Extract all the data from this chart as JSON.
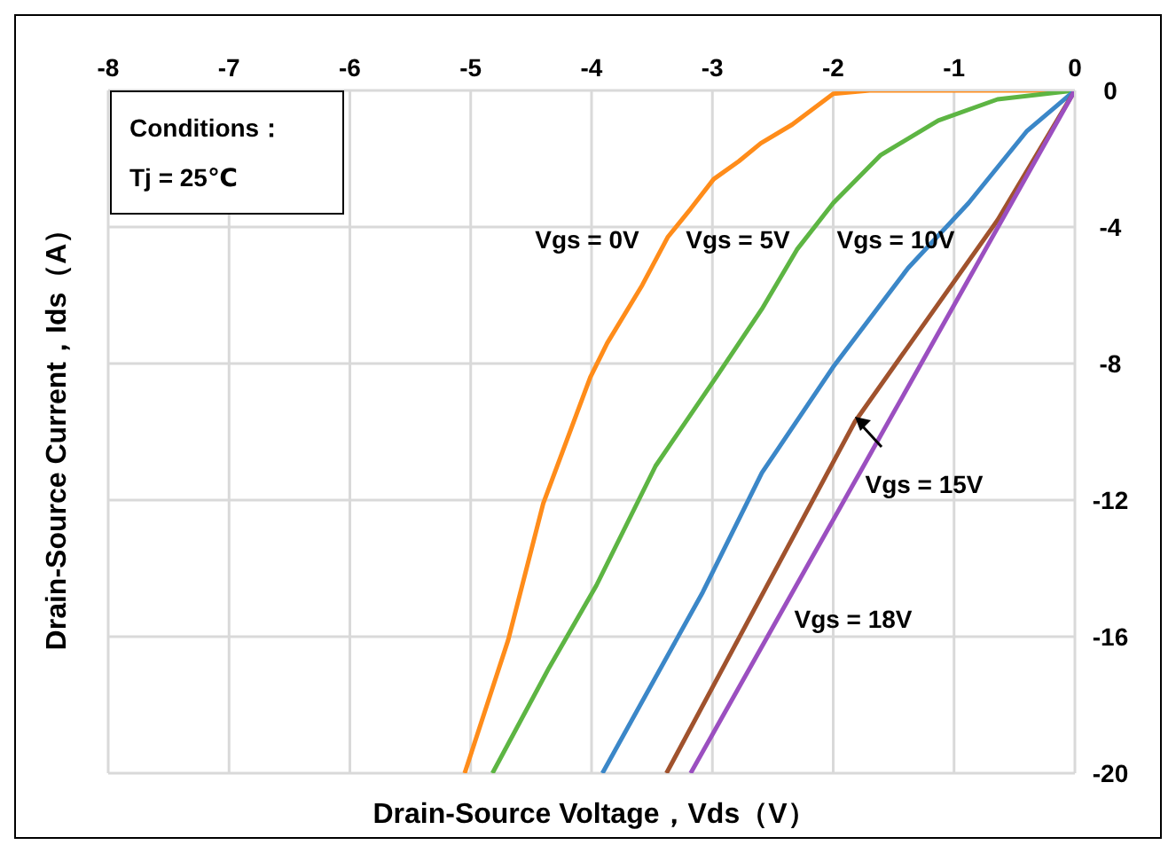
{
  "chart_data": {
    "type": "line",
    "xlabel": "Drain-Source Voltage，Vds（V）",
    "ylabel": "Drain-Source Current，Ids（A）",
    "xlim": [
      -8,
      0
    ],
    "xticks": [
      -8,
      -7,
      -6,
      -5,
      -4,
      -3,
      -2,
      -1,
      0
    ],
    "ylim": [
      -20,
      0
    ],
    "yticks": [
      -20,
      -16,
      -12,
      -8,
      -4,
      0
    ],
    "grid": true,
    "marker": "none",
    "line_style": "solid",
    "series": [
      {
        "name": "Vgs = 0V",
        "color": "#ff8c1a",
        "x": [
          0,
          -1.2,
          -1.7,
          -2.0,
          -2.34,
          -2.6,
          -2.78,
          -2.99,
          -3.18,
          -3.37,
          -3.58,
          -3.87,
          -4.01,
          -4.4,
          -4.69,
          -5.05
        ],
        "values": [
          0,
          0,
          0,
          -0.1,
          -1.0,
          -1.55,
          -2.07,
          -2.6,
          -3.47,
          -4.3,
          -5.7,
          -7.4,
          -8.4,
          -12.1,
          -16.1,
          -20
        ]
      },
      {
        "name": "Vgs = 5V",
        "color": "#5db543",
        "x": [
          0,
          -0.64,
          -1.13,
          -1.61,
          -2.0,
          -2.3,
          -2.59,
          -2.95,
          -3.47,
          -3.96,
          -4.35,
          -4.82
        ],
        "values": [
          0,
          -0.26,
          -0.88,
          -1.9,
          -3.3,
          -4.66,
          -6.4,
          -8.3,
          -11.0,
          -14.5,
          -16.9,
          -20
        ]
      },
      {
        "name": "Vgs = 10V",
        "color": "#3b87c8",
        "x": [
          0,
          -0.4,
          -0.88,
          -1.38,
          -2.0,
          -2.59,
          -3.08,
          -3.91
        ],
        "values": [
          0,
          -1.2,
          -3.3,
          -5.2,
          -8.1,
          -11.2,
          -14.7,
          -20
        ]
      },
      {
        "name": "Vgs = 15V",
        "color": "#a0522d",
        "x": [
          0,
          -0.64,
          -1.82,
          -3.38
        ],
        "values": [
          0,
          -3.8,
          -9.7,
          -20
        ]
      },
      {
        "name": "Vgs = 18V",
        "color": "#9b4fc0",
        "x": [
          0,
          -3.18
        ],
        "values": [
          0,
          -20
        ]
      }
    ],
    "annotations": [
      "Conditions：",
      "Tj = 25℃"
    ]
  }
}
